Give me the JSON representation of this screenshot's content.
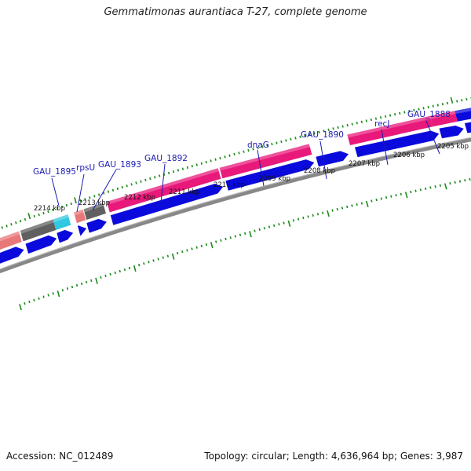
{
  "title": "Gemmatimonas aurantiaca T-27, complete genome",
  "footer": {
    "accession": "Accession: NC_012489",
    "summary": "Topology: circular; Length: 4,636,964 bp; Genes: 3,987"
  },
  "colors": {
    "gene_forward": "#0a0adc",
    "gene_pink": "#e8197a",
    "gene_salmon": "#e87878",
    "gene_gray": "#606060",
    "gene_cyan": "#30c8e0",
    "backbone": "#888888",
    "tick": "#1a8a1a",
    "label": "#1a1ab4"
  },
  "ruler_labels": [
    {
      "label": "2214 kbp",
      "kbp": 2214
    },
    {
      "label": "2213 kbp",
      "kbp": 2213
    },
    {
      "label": "2212 kbp",
      "kbp": 2212
    },
    {
      "label": "2211 kbp",
      "kbp": 2211
    },
    {
      "label": "2210 kbp",
      "kbp": 2210
    },
    {
      "label": "2209 kbp",
      "kbp": 2209
    },
    {
      "label": "2208 kbp",
      "kbp": 2208
    },
    {
      "label": "2207 kbp",
      "kbp": 2207
    },
    {
      "label": "2206 kbp",
      "kbp": 2206
    },
    {
      "label": "2205 kbp",
      "kbp": 2205
    }
  ],
  "gene_labels": [
    {
      "name": "GAU_1895"
    },
    {
      "name": "rpsU"
    },
    {
      "name": "GAU_1893"
    },
    {
      "name": "GAU_1892"
    },
    {
      "name": "dnaG"
    },
    {
      "name": "GAU_1890"
    },
    {
      "name": "recJ"
    },
    {
      "name": "GAU_1888"
    }
  ]
}
